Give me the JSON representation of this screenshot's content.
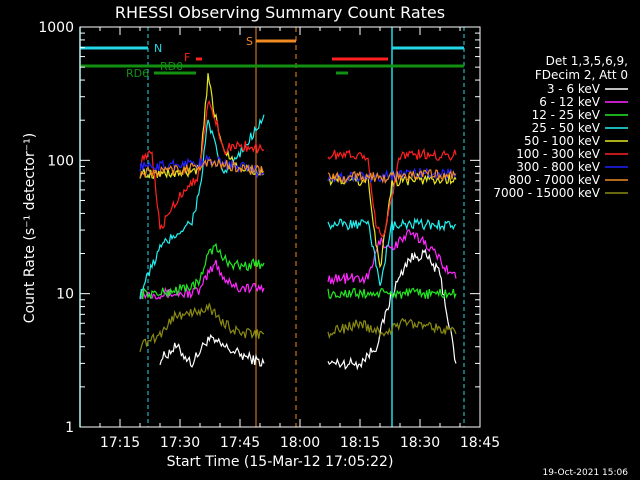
{
  "chart_data": {
    "type": "line",
    "title": "RHESSI Observing Summary Count Rates",
    "xlabel": "Start Time (15-Mar-12 17:05:22)",
    "ylabel": "Count Rate (s⁻¹ detector⁻¹)",
    "yscale": "log",
    "ylim": [
      1,
      1000
    ],
    "xlim_minutes": [
      0,
      100
    ],
    "x_ticks": [
      "17:15",
      "17:30",
      "17:45",
      "18:00",
      "18:15",
      "18:30",
      "18:45"
    ],
    "y_ticks": [
      "1",
      "10",
      "100",
      "1000"
    ],
    "legend_header": [
      "Det 1,3,5,6,9,",
      "FDecim 2, Att 0"
    ],
    "footer_date": "19-Oct-2021 15:06",
    "flags": {
      "N": {
        "label": "N",
        "color": "#22d8e8"
      },
      "S": {
        "label": "S",
        "color": "#f08a22"
      },
      "F": {
        "label": "F",
        "color": "#ff2020"
      },
      "RD0": {
        "label": "RD0",
        "color": "#129012"
      },
      "RD6": {
        "label": "RD6",
        "color": "#129012"
      }
    },
    "series": [
      {
        "name": "3 - 6 keV",
        "color": "#ffffff",
        "values": [
          [
            15,
            2
          ],
          [
            17,
            0
          ],
          [
            20,
            3.2
          ],
          [
            24,
            4.0
          ],
          [
            28,
            3.0
          ],
          [
            32,
            4.6
          ],
          [
            36,
            4.0
          ],
          [
            40,
            3.5
          ],
          [
            46,
            3.0
          ],
          [
            60,
            0
          ],
          [
            62,
            3.0
          ],
          [
            70,
            3.0
          ],
          [
            74,
            4.0
          ],
          [
            78,
            10
          ],
          [
            82,
            18
          ],
          [
            86,
            20
          ],
          [
            90,
            14
          ],
          [
            94,
            3
          ]
        ]
      },
      {
        "name": "6 - 12 keV",
        "color": "#ff28ff",
        "values": [
          [
            15,
            10
          ],
          [
            20,
            10
          ],
          [
            26,
            10
          ],
          [
            30,
            10.5
          ],
          [
            32,
            14
          ],
          [
            34,
            17
          ],
          [
            36,
            13
          ],
          [
            40,
            11
          ],
          [
            46,
            11
          ],
          [
            60,
            0
          ],
          [
            62,
            13
          ],
          [
            72,
            13
          ],
          [
            75,
            25
          ],
          [
            78,
            22
          ],
          [
            82,
            28
          ],
          [
            86,
            25
          ],
          [
            90,
            18
          ],
          [
            94,
            13
          ]
        ]
      },
      {
        "name": "12 - 25 keV",
        "color": "#22e822",
        "values": [
          [
            15,
            10
          ],
          [
            20,
            10
          ],
          [
            26,
            11
          ],
          [
            30,
            12
          ],
          [
            32,
            21
          ],
          [
            34,
            22
          ],
          [
            36,
            18
          ],
          [
            40,
            16
          ],
          [
            46,
            17
          ],
          [
            60,
            0
          ],
          [
            62,
            10
          ],
          [
            72,
            10
          ],
          [
            78,
            10
          ],
          [
            84,
            10
          ],
          [
            90,
            10
          ],
          [
            94,
            10
          ]
        ]
      },
      {
        "name": "25 - 50 keV",
        "color": "#22f0f0",
        "values": [
          [
            15,
            10
          ],
          [
            18,
            16
          ],
          [
            20,
            22
          ],
          [
            24,
            28
          ],
          [
            28,
            35
          ],
          [
            30,
            60
          ],
          [
            32,
            200
          ],
          [
            34,
            120
          ],
          [
            36,
            80
          ],
          [
            40,
            110
          ],
          [
            46,
            220
          ],
          [
            60,
            0
          ],
          [
            62,
            33
          ],
          [
            72,
            33
          ],
          [
            75,
            12
          ],
          [
            78,
            32
          ],
          [
            84,
            33
          ],
          [
            90,
            33
          ],
          [
            94,
            33
          ]
        ]
      },
      {
        "name": "50 - 100 keV",
        "color": "#e8e822",
        "values": [
          [
            15,
            80
          ],
          [
            20,
            80
          ],
          [
            26,
            80
          ],
          [
            30,
            85
          ],
          [
            32,
            420
          ],
          [
            34,
            200
          ],
          [
            36,
            120
          ],
          [
            40,
            90
          ],
          [
            46,
            80
          ],
          [
            60,
            0
          ],
          [
            62,
            70
          ],
          [
            72,
            70
          ],
          [
            75,
            15
          ],
          [
            78,
            70
          ],
          [
            84,
            72
          ],
          [
            90,
            72
          ],
          [
            94,
            72
          ]
        ]
      },
      {
        "name": "100 - 300 keV",
        "color": "#ff2020",
        "values": [
          [
            15,
            100
          ],
          [
            18,
            110
          ],
          [
            20,
            30
          ],
          [
            24,
            50
          ],
          [
            28,
            70
          ],
          [
            30,
            80
          ],
          [
            32,
            280
          ],
          [
            34,
            200
          ],
          [
            36,
            120
          ],
          [
            40,
            130
          ],
          [
            46,
            120
          ],
          [
            60,
            0
          ],
          [
            62,
            110
          ],
          [
            72,
            110
          ],
          [
            74,
            30
          ],
          [
            76,
            28
          ],
          [
            80,
            110
          ],
          [
            86,
            110
          ],
          [
            94,
            110
          ]
        ]
      },
      {
        "name": "300 - 800 keV",
        "color": "#2020ff",
        "values": [
          [
            15,
            90
          ],
          [
            20,
            90
          ],
          [
            26,
            95
          ],
          [
            30,
            95
          ],
          [
            32,
            100
          ],
          [
            36,
            95
          ],
          [
            40,
            90
          ],
          [
            46,
            80
          ],
          [
            60,
            0
          ],
          [
            62,
            75
          ],
          [
            72,
            75
          ],
          [
            78,
            77
          ],
          [
            84,
            80
          ],
          [
            90,
            80
          ],
          [
            94,
            80
          ]
        ]
      },
      {
        "name": "800 - 7000 keV",
        "color": "#f08a22",
        "values": [
          [
            15,
            80
          ],
          [
            20,
            82
          ],
          [
            26,
            85
          ],
          [
            30,
            92
          ],
          [
            34,
            95
          ],
          [
            40,
            88
          ],
          [
            46,
            82
          ],
          [
            60,
            0
          ],
          [
            62,
            75
          ],
          [
            72,
            75
          ],
          [
            78,
            75
          ],
          [
            84,
            78
          ],
          [
            90,
            78
          ],
          [
            94,
            78
          ]
        ]
      },
      {
        "name": "7000 - 15000 keV",
        "color": "#8a8a12",
        "values": [
          [
            15,
            4
          ],
          [
            20,
            5
          ],
          [
            24,
            7
          ],
          [
            28,
            7
          ],
          [
            32,
            8
          ],
          [
            36,
            6
          ],
          [
            40,
            5
          ],
          [
            46,
            5
          ],
          [
            60,
            0
          ],
          [
            62,
            5
          ],
          [
            70,
            6
          ],
          [
            76,
            5
          ],
          [
            80,
            6
          ],
          [
            86,
            6
          ],
          [
            94,
            5
          ]
        ]
      }
    ]
  }
}
